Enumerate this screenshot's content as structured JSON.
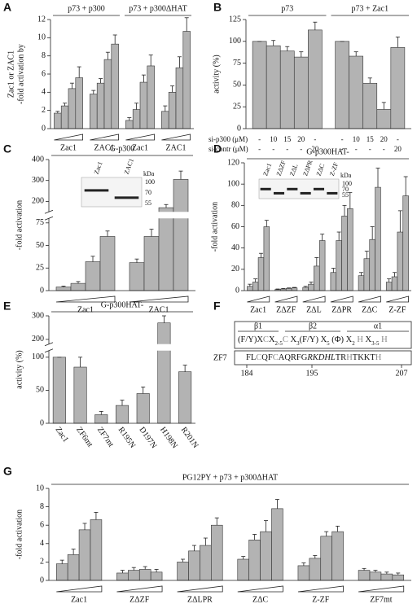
{
  "chart_data": [
    {
      "type": "bar",
      "panel": "A",
      "headers": [
        "p73 + p300",
        "p73 + p300ΔHAT"
      ],
      "ylabel": [
        "-fold activation by",
        "Zac1 or ZAC1"
      ],
      "color": "#b3b3b3",
      "ylim": [
        0,
        12
      ],
      "yticks": [
        0,
        2,
        4,
        6,
        8,
        10,
        12
      ],
      "groups": [
        {
          "label": "Zac1",
          "values": [
            1.7,
            2.5,
            4.4,
            5.6
          ],
          "errors": [
            0.2,
            0.3,
            0.6,
            1.2
          ]
        },
        {
          "label": "ZAC1",
          "values": [
            3.8,
            5.0,
            7.6,
            9.3
          ],
          "errors": [
            0.4,
            0.5,
            0.8,
            1.0
          ]
        },
        {
          "label": "Zac1",
          "values": [
            0.9,
            2.1,
            5.1,
            6.9
          ],
          "errors": [
            0.3,
            0.7,
            0.8,
            1.2
          ]
        },
        {
          "label": "ZAC1",
          "values": [
            1.9,
            4.0,
            6.7,
            10.7
          ],
          "errors": [
            0.6,
            0.7,
            1.2,
            1.5
          ]
        }
      ]
    },
    {
      "type": "bar",
      "panel": "B",
      "headers": [
        "p73",
        "p73 + Zac1"
      ],
      "ylabel": [
        "activity (%)"
      ],
      "color": "#b3b3b3",
      "ylim": [
        0,
        125
      ],
      "yticks": [
        0,
        25,
        50,
        75,
        100,
        125
      ],
      "groups": [
        {
          "values": [
            100,
            95,
            89,
            82,
            113
          ],
          "errors": [
            0,
            6,
            5,
            6,
            9
          ]
        },
        {
          "values": [
            100,
            83,
            52,
            22,
            93
          ],
          "errors": [
            0,
            5,
            6,
            8,
            12
          ]
        }
      ],
      "rows": [
        {
          "label": "si-p300 (μM)",
          "cells": [
            [
              "-",
              "10",
              "15",
              "20",
              "-"
            ],
            [
              "-",
              "10",
              "15",
              "20",
              "-"
            ]
          ]
        },
        {
          "label": "si-contr (μM)",
          "cells": [
            [
              "-",
              "-",
              "-",
              "-",
              "20"
            ],
            [
              "-",
              "-",
              "-",
              "-",
              "20"
            ]
          ]
        }
      ]
    },
    {
      "type": "bar",
      "panel": "C",
      "headers": [
        "G-p300"
      ],
      "ylabel": [
        "-fold activation"
      ],
      "color": "#b3b3b3",
      "ylim": [
        0,
        400
      ],
      "ybreak": [
        80,
        150
      ],
      "yticks": [
        0,
        25,
        50,
        75,
        200,
        300,
        400
      ],
      "groups": [
        {
          "label": "Zac1",
          "values": [
            4,
            8,
            32,
            60
          ],
          "errors": [
            1,
            2,
            6,
            6
          ]
        },
        {
          "label": "ZAC1",
          "values": [
            31,
            60,
            170,
            305
          ],
          "errors": [
            4,
            8,
            15,
            40
          ]
        }
      ],
      "inset": {
        "lanes": [
          "Zac1",
          "ZAC1"
        ],
        "unit": "kDa",
        "markers": [
          100,
          70,
          55
        ]
      }
    },
    {
      "type": "bar",
      "panel": "D",
      "headers": [
        "G-p300HAT-"
      ],
      "ylabel": [
        "-fold activation"
      ],
      "color": "#b3b3b3",
      "ylim": [
        0,
        120
      ],
      "yticks": [
        0,
        20,
        40,
        60,
        80,
        100,
        120
      ],
      "groups": [
        {
          "label": "Zac1",
          "values": [
            4,
            8,
            31,
            60
          ],
          "errors": [
            2,
            3,
            4,
            6
          ]
        },
        {
          "label": "ZΔZF",
          "values": [
            1,
            1.5,
            2,
            2.5
          ],
          "errors": [
            0.5,
            0.5,
            0.5,
            0.5
          ]
        },
        {
          "label": "ZΔL",
          "values": [
            3,
            6,
            23,
            47
          ],
          "errors": [
            1,
            2,
            8,
            6
          ]
        },
        {
          "label": "ZΔPR",
          "values": [
            17,
            47,
            70,
            77
          ],
          "errors": [
            4,
            8,
            10,
            15
          ]
        },
        {
          "label": "ZΔC",
          "values": [
            14,
            30,
            48,
            97
          ],
          "errors": [
            3,
            7,
            12,
            18
          ]
        },
        {
          "label": "Z-ZF",
          "values": [
            8,
            13,
            55,
            89
          ],
          "errors": [
            3,
            4,
            20,
            18
          ]
        }
      ],
      "inset": {
        "lanes": [
          "Zac1",
          "ZΔZF",
          "ZΔL",
          "ZΔPR",
          "ZΔC",
          "Z-ZF"
        ],
        "unit": "kDa",
        "markers": [
          100,
          70,
          55
        ]
      }
    },
    {
      "type": "bar",
      "panel": "E",
      "headers": [
        "G-p300HAT-"
      ],
      "ylabel": [
        "activity (%)"
      ],
      "color": "#b3b3b3",
      "ylim": [
        0,
        300
      ],
      "ybreak": [
        110,
        180
      ],
      "yticks": [
        0,
        50,
        100,
        200,
        300
      ],
      "groups": [
        {
          "label": "Zac1",
          "values": [
            100
          ],
          "errors": [
            0
          ]
        },
        {
          "label": "ZF6mt",
          "values": [
            85
          ],
          "errors": [
            15
          ]
        },
        {
          "label": "ZF7mt",
          "values": [
            13
          ],
          "errors": [
            5
          ]
        },
        {
          "label": "R195N",
          "values": [
            27
          ],
          "errors": [
            8
          ]
        },
        {
          "label": "D197N",
          "values": [
            45
          ],
          "errors": [
            10
          ]
        },
        {
          "label": "H198N",
          "values": [
            270
          ],
          "errors": [
            30
          ]
        },
        {
          "label": "R201N",
          "values": [
            78
          ],
          "errors": [
            10
          ]
        }
      ]
    },
    {
      "type": "bar",
      "panel": "G",
      "headers": [
        "PG12PY + p73 + p300ΔHAT"
      ],
      "ylabel": [
        "-fold activation"
      ],
      "color": "#b3b3b3",
      "ylim": [
        0,
        10
      ],
      "yticks": [
        0,
        2,
        4,
        6,
        8,
        10
      ],
      "groups": [
        {
          "label": "Zac1",
          "values": [
            1.8,
            2.8,
            5.5,
            6.6
          ],
          "errors": [
            0.4,
            0.6,
            0.7,
            0.8
          ]
        },
        {
          "label": "ZΔZF",
          "values": [
            0.8,
            1.1,
            1.2,
            0.9
          ],
          "errors": [
            0.3,
            0.3,
            0.3,
            0.3
          ]
        },
        {
          "label": "ZΔLPR",
          "values": [
            2.0,
            3.2,
            3.8,
            6.0
          ],
          "errors": [
            0.3,
            0.6,
            0.8,
            0.8
          ]
        },
        {
          "label": "ZΔC",
          "values": [
            2.3,
            4.4,
            5.3,
            7.8
          ],
          "errors": [
            0.3,
            0.6,
            1.2,
            1.0
          ]
        },
        {
          "label": "Z-ZF",
          "values": [
            1.6,
            2.4,
            4.8,
            5.3
          ],
          "errors": [
            0.3,
            0.3,
            0.5,
            0.6
          ]
        },
        {
          "label": "ZF7mt",
          "values": [
            1.1,
            0.9,
            0.7,
            0.6
          ],
          "errors": [
            0.2,
            0.2,
            0.2,
            0.2
          ]
        }
      ]
    }
  ],
  "sequence_diagram": {
    "panel": "F",
    "headers": [
      "β1",
      "β2",
      "α1"
    ],
    "motif": [
      {
        "t": "(F/Y)X",
        "s": "plain"
      },
      {
        "t": "C",
        "s": "gray"
      },
      {
        "t": "X",
        "s": "plain"
      },
      {
        "t": "2-5",
        "s": "sub"
      },
      {
        "t": "C",
        "s": "gray"
      },
      {
        "t": " X",
        "s": "plain"
      },
      {
        "t": "3",
        "s": "sub"
      },
      {
        "t": "(F/Y)",
        "s": "plain"
      },
      {
        "t": " X",
        "s": "plain"
      },
      {
        "t": "5",
        "s": "sub"
      },
      {
        "t": " (Φ) X",
        "s": "plain"
      },
      {
        "t": "2",
        "s": "sub"
      },
      {
        "t": " H",
        "s": "gray"
      },
      {
        "t": " X",
        "s": "plain"
      },
      {
        "t": "3-5",
        "s": "sub"
      },
      {
        "t": " H",
        "s": "gray"
      }
    ],
    "label": "ZF7",
    "sequence": [
      {
        "t": "FL",
        "s": "plain"
      },
      {
        "t": "C",
        "s": "gray"
      },
      {
        "t": "QF",
        "s": "plain"
      },
      {
        "t": "C",
        "s": "gray"
      },
      {
        "t": "AQRFG",
        "s": "plain"
      },
      {
        "t": "RKDHL",
        "s": "italic"
      },
      {
        "t": "TR",
        "s": "plain"
      },
      {
        "t": "H",
        "s": "gray"
      },
      {
        "t": "TKKT",
        "s": "plain"
      },
      {
        "t": "H",
        "s": "gray"
      }
    ],
    "positions": [
      184,
      195,
      207
    ]
  }
}
